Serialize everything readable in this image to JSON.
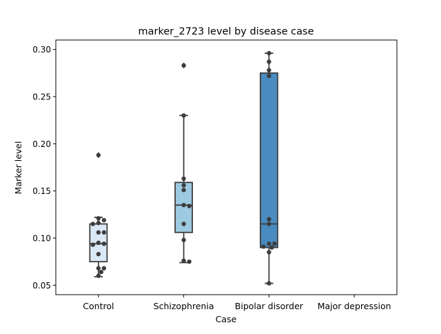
{
  "chart_data": {
    "type": "box",
    "title": "marker_2723 level by disease case",
    "xlabel": "Case",
    "ylabel": "Marker level",
    "categories": [
      "Control",
      "Schizophrenia",
      "Bipolar disorder",
      "Major depression"
    ],
    "ylim": [
      0.04,
      0.31
    ],
    "yticks": [
      0.05,
      0.1,
      0.15,
      0.2,
      0.25,
      0.3
    ],
    "ytick_labels": [
      "0.05",
      "0.10",
      "0.15",
      "0.20",
      "0.25",
      "0.30"
    ],
    "colors": {
      "box_fills": [
        "#dbe9f6",
        "#9ecae1",
        "#4a8cc0",
        "#08519c"
      ],
      "lines": "#3d3d3d",
      "points": "#3d3d3d"
    },
    "boxes": [
      {
        "category": "Control",
        "whislo": 0.059,
        "q1": 0.075,
        "med": 0.094,
        "q3": 0.115,
        "whishi": 0.122,
        "fliers": [
          0.188
        ]
      },
      {
        "category": "Schizophrenia",
        "whislo": 0.074,
        "q1": 0.106,
        "med": 0.135,
        "q3": 0.159,
        "whishi": 0.23,
        "fliers": [
          0.283
        ]
      },
      {
        "category": "Bipolar disorder",
        "whislo": 0.052,
        "q1": 0.09,
        "med": 0.115,
        "q3": 0.275,
        "whishi": 0.296,
        "fliers": []
      },
      {
        "category": "Major depression",
        "empty": true
      }
    ],
    "points": [
      {
        "category": "Control",
        "values": [
          0.188,
          0.121,
          0.119,
          0.116,
          0.115,
          0.106,
          0.106,
          0.095,
          0.094,
          0.093,
          0.083,
          0.068,
          0.068,
          0.064,
          0.06
        ]
      },
      {
        "category": "Schizophrenia",
        "values": [
          0.283,
          0.23,
          0.163,
          0.156,
          0.151,
          0.135,
          0.134,
          0.115,
          0.098,
          0.076,
          0.075
        ]
      },
      {
        "category": "Bipolar disorder",
        "values": [
          0.296,
          0.287,
          0.278,
          0.272,
          0.12,
          0.115,
          0.094,
          0.094,
          0.091,
          0.09,
          0.085,
          0.052
        ]
      },
      {
        "category": "Major depression",
        "values": []
      }
    ]
  }
}
